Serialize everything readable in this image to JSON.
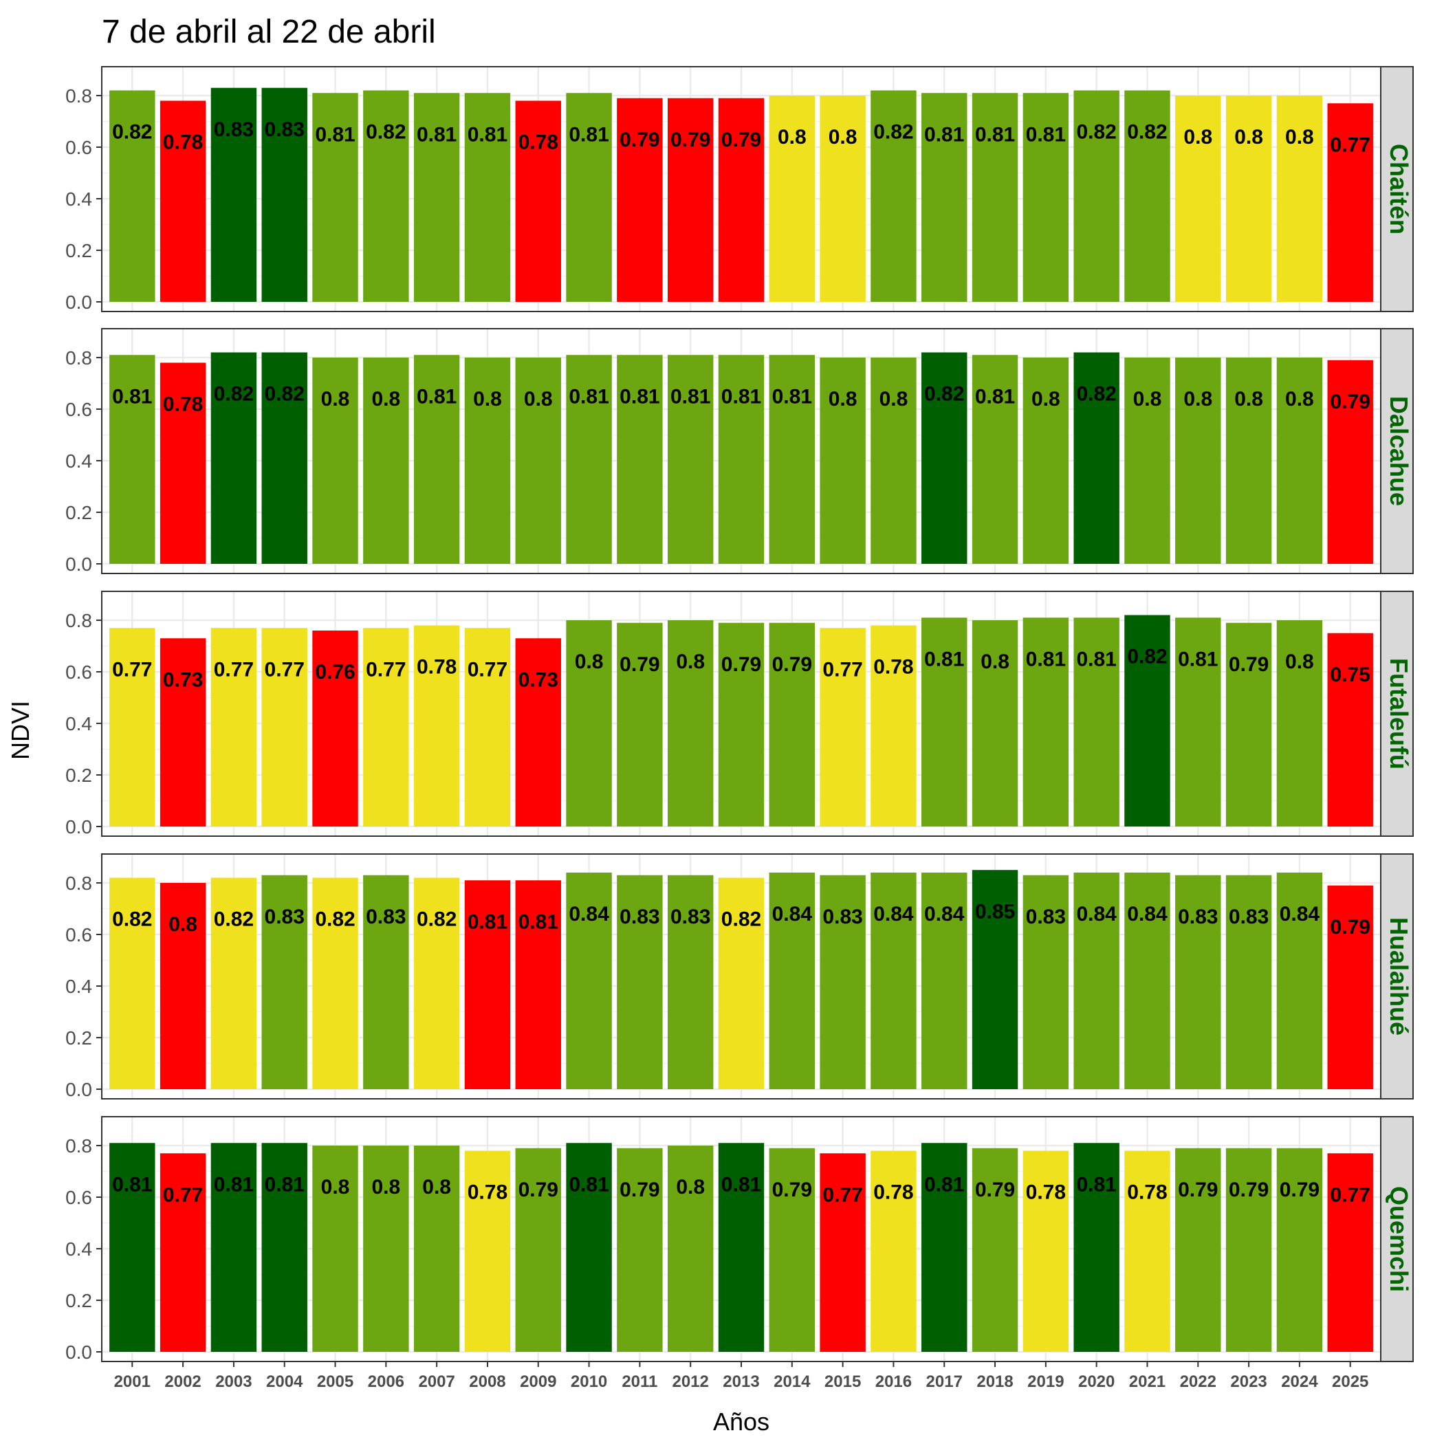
{
  "chart_data": {
    "type": "bar",
    "title": "7 de abril al 22 de abril",
    "xlabel": "Años",
    "ylabel": "NDVI",
    "ylim": [
      0,
      0.88
    ],
    "yticks": [
      "0.0",
      "0.2",
      "0.4",
      "0.6",
      "0.8"
    ],
    "grid": true,
    "strip_color": "#006400",
    "colors": {
      "red": "#ff0000",
      "yellow": "#f0e11e",
      "lightgreen": "#6ca611",
      "darkgreen": "#005f00"
    },
    "categories": [
      "2001",
      "2002",
      "2003",
      "2004",
      "2005",
      "2006",
      "2007",
      "2008",
      "2009",
      "2010",
      "2011",
      "2012",
      "2013",
      "2014",
      "2015",
      "2016",
      "2017",
      "2018",
      "2019",
      "2020",
      "2021",
      "2022",
      "2023",
      "2024",
      "2025"
    ],
    "panels": [
      {
        "name": "Chaitén",
        "values": [
          0.82,
          0.78,
          0.83,
          0.83,
          0.81,
          0.82,
          0.81,
          0.81,
          0.78,
          0.81,
          0.79,
          0.79,
          0.79,
          0.8,
          0.8,
          0.82,
          0.81,
          0.81,
          0.81,
          0.82,
          0.82,
          0.8,
          0.8,
          0.8,
          0.77
        ],
        "labels": [
          "0.82",
          "0.78",
          "0.83",
          "0.83",
          "0.81",
          "0.82",
          "0.81",
          "0.81",
          "0.78",
          "0.81",
          "0.79",
          "0.79",
          "0.79",
          "0.8",
          "0.8",
          "0.82",
          "0.81",
          "0.81",
          "0.81",
          "0.82",
          "0.82",
          "0.8",
          "0.8",
          "0.8",
          "0.77"
        ],
        "fills": [
          "lightgreen",
          "red",
          "darkgreen",
          "darkgreen",
          "lightgreen",
          "lightgreen",
          "lightgreen",
          "lightgreen",
          "red",
          "lightgreen",
          "red",
          "red",
          "red",
          "yellow",
          "yellow",
          "lightgreen",
          "lightgreen",
          "lightgreen",
          "lightgreen",
          "lightgreen",
          "lightgreen",
          "yellow",
          "yellow",
          "yellow",
          "red"
        ]
      },
      {
        "name": "Dalcahue",
        "values": [
          0.81,
          0.78,
          0.82,
          0.82,
          0.8,
          0.8,
          0.81,
          0.8,
          0.8,
          0.81,
          0.81,
          0.81,
          0.81,
          0.81,
          0.8,
          0.8,
          0.82,
          0.81,
          0.8,
          0.82,
          0.8,
          0.8,
          0.8,
          0.8,
          0.79
        ],
        "labels": [
          "0.81",
          "0.78",
          "0.82",
          "0.82",
          "0.8",
          "0.8",
          "0.81",
          "0.8",
          "0.8",
          "0.81",
          "0.81",
          "0.81",
          "0.81",
          "0.81",
          "0.8",
          "0.8",
          "0.82",
          "0.81",
          "0.8",
          "0.82",
          "0.8",
          "0.8",
          "0.8",
          "0.8",
          "0.79"
        ],
        "fills": [
          "lightgreen",
          "red",
          "darkgreen",
          "darkgreen",
          "lightgreen",
          "lightgreen",
          "lightgreen",
          "lightgreen",
          "lightgreen",
          "lightgreen",
          "lightgreen",
          "lightgreen",
          "lightgreen",
          "lightgreen",
          "lightgreen",
          "lightgreen",
          "darkgreen",
          "lightgreen",
          "lightgreen",
          "darkgreen",
          "lightgreen",
          "lightgreen",
          "lightgreen",
          "lightgreen",
          "red"
        ]
      },
      {
        "name": "Futaleufú",
        "values": [
          0.77,
          0.73,
          0.77,
          0.77,
          0.76,
          0.77,
          0.78,
          0.77,
          0.73,
          0.8,
          0.79,
          0.8,
          0.79,
          0.79,
          0.77,
          0.78,
          0.81,
          0.8,
          0.81,
          0.81,
          0.82,
          0.81,
          0.79,
          0.8,
          0.75
        ],
        "labels": [
          "0.77",
          "0.73",
          "0.77",
          "0.77",
          "0.76",
          "0.77",
          "0.78",
          "0.77",
          "0.73",
          "0.8",
          "0.79",
          "0.8",
          "0.79",
          "0.79",
          "0.77",
          "0.78",
          "0.81",
          "0.8",
          "0.81",
          "0.81",
          "0.82",
          "0.81",
          "0.79",
          "0.8",
          "0.75"
        ],
        "fills": [
          "yellow",
          "red",
          "yellow",
          "yellow",
          "red",
          "yellow",
          "yellow",
          "yellow",
          "red",
          "lightgreen",
          "lightgreen",
          "lightgreen",
          "lightgreen",
          "lightgreen",
          "yellow",
          "yellow",
          "lightgreen",
          "lightgreen",
          "lightgreen",
          "lightgreen",
          "darkgreen",
          "lightgreen",
          "lightgreen",
          "lightgreen",
          "red"
        ]
      },
      {
        "name": "Hualaihué",
        "values": [
          0.82,
          0.8,
          0.82,
          0.83,
          0.82,
          0.83,
          0.82,
          0.81,
          0.81,
          0.84,
          0.83,
          0.83,
          0.82,
          0.84,
          0.83,
          0.84,
          0.84,
          0.85,
          0.83,
          0.84,
          0.84,
          0.83,
          0.83,
          0.84,
          0.79
        ],
        "labels": [
          "0.82",
          "0.8",
          "0.82",
          "0.83",
          "0.82",
          "0.83",
          "0.82",
          "0.81",
          "0.81",
          "0.84",
          "0.83",
          "0.83",
          "0.82",
          "0.84",
          "0.83",
          "0.84",
          "0.84",
          "0.85",
          "0.83",
          "0.84",
          "0.84",
          "0.83",
          "0.83",
          "0.84",
          "0.79"
        ],
        "fills": [
          "yellow",
          "red",
          "yellow",
          "lightgreen",
          "yellow",
          "lightgreen",
          "yellow",
          "red",
          "red",
          "lightgreen",
          "lightgreen",
          "lightgreen",
          "yellow",
          "lightgreen",
          "lightgreen",
          "lightgreen",
          "lightgreen",
          "darkgreen",
          "lightgreen",
          "lightgreen",
          "lightgreen",
          "lightgreen",
          "lightgreen",
          "lightgreen",
          "red"
        ]
      },
      {
        "name": "Quemchi",
        "values": [
          0.81,
          0.77,
          0.81,
          0.81,
          0.8,
          0.8,
          0.8,
          0.78,
          0.79,
          0.81,
          0.79,
          0.8,
          0.81,
          0.79,
          0.77,
          0.78,
          0.81,
          0.79,
          0.78,
          0.81,
          0.78,
          0.79,
          0.79,
          0.79,
          0.77
        ],
        "labels": [
          "0.81",
          "0.77",
          "0.81",
          "0.81",
          "0.8",
          "0.8",
          "0.8",
          "0.78",
          "0.79",
          "0.81",
          "0.79",
          "0.8",
          "0.81",
          "0.79",
          "0.77",
          "0.78",
          "0.81",
          "0.79",
          "0.78",
          "0.81",
          "0.78",
          "0.79",
          "0.79",
          "0.79",
          "0.77"
        ],
        "fills": [
          "darkgreen",
          "red",
          "darkgreen",
          "darkgreen",
          "lightgreen",
          "lightgreen",
          "lightgreen",
          "yellow",
          "lightgreen",
          "darkgreen",
          "lightgreen",
          "lightgreen",
          "darkgreen",
          "lightgreen",
          "red",
          "yellow",
          "darkgreen",
          "lightgreen",
          "yellow",
          "darkgreen",
          "yellow",
          "lightgreen",
          "lightgreen",
          "lightgreen",
          "red"
        ]
      }
    ]
  }
}
